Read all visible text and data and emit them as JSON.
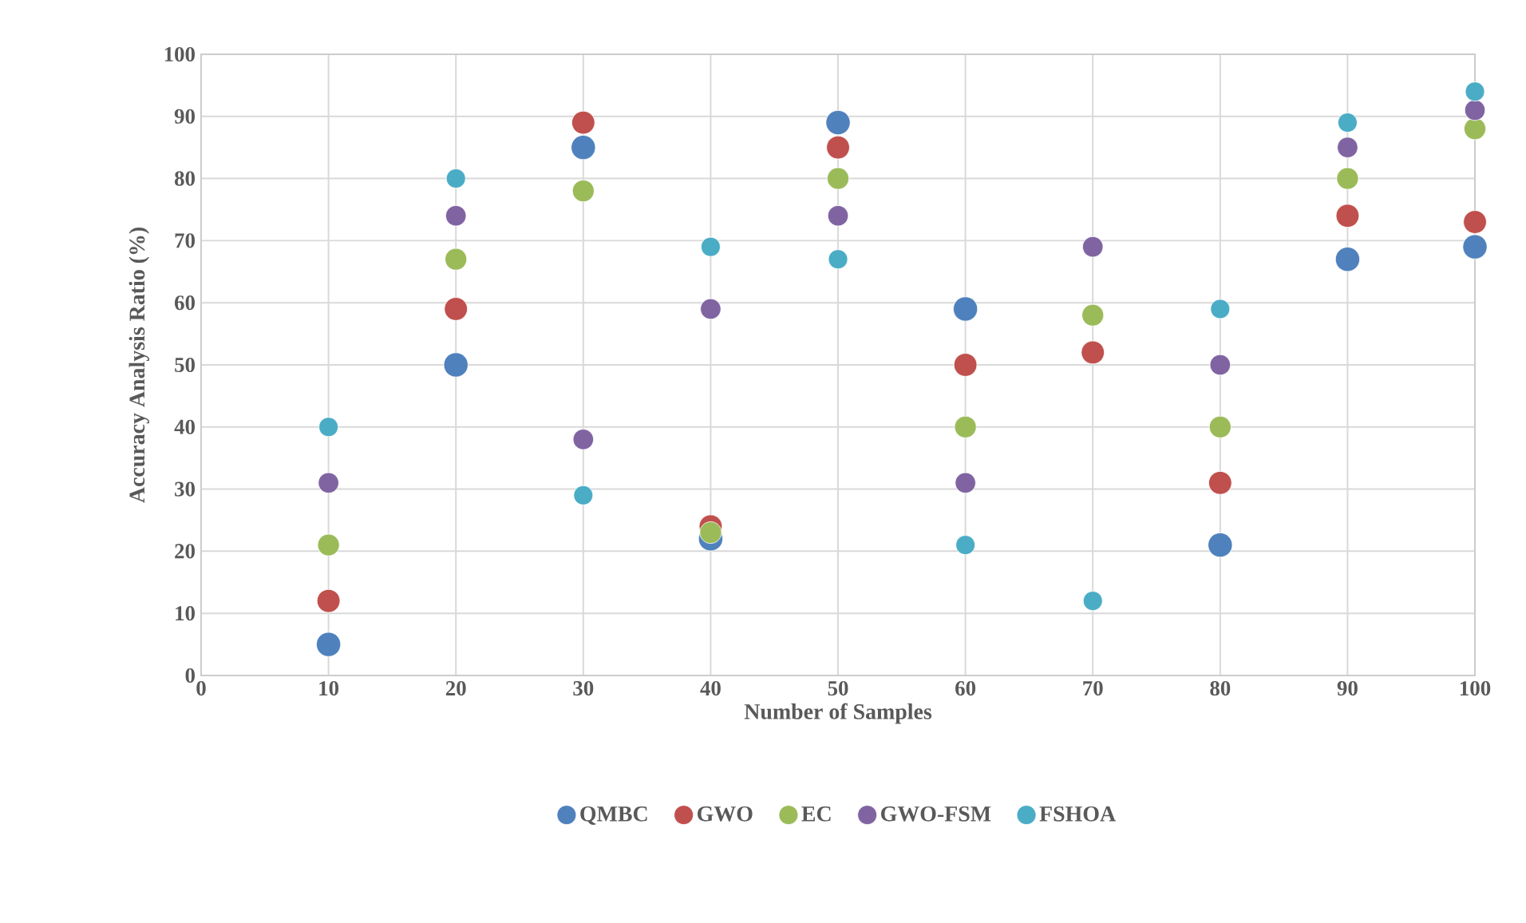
{
  "chart_data": {
    "type": "scatter",
    "xlabel": "Number of Samples",
    "ylabel": "Accuracy Analysis Ratio (%)",
    "x": [
      10,
      20,
      30,
      40,
      50,
      60,
      70,
      80,
      90,
      100
    ],
    "series": [
      {
        "name": "QMBC",
        "color": "#4f81bd",
        "values": [
          5,
          50,
          85,
          22,
          89,
          59,
          null,
          21,
          67,
          69
        ]
      },
      {
        "name": "GWO",
        "color": "#c0504d",
        "values": [
          12,
          59,
          89,
          24,
          85,
          50,
          52,
          31,
          74,
          73
        ]
      },
      {
        "name": "EC",
        "color": "#9bbb59",
        "values": [
          21,
          67,
          78,
          23,
          80,
          40,
          58,
          40,
          80,
          88
        ]
      },
      {
        "name": "GWO-FSM",
        "color": "#8064a2",
        "values": [
          31,
          74,
          38,
          59,
          74,
          31,
          69,
          50,
          85,
          91
        ]
      },
      {
        "name": "FSHOA",
        "color": "#4bacc6",
        "values": [
          40,
          80,
          29,
          69,
          67,
          21,
          12,
          59,
          89,
          94
        ]
      }
    ],
    "xlim": [
      0,
      100
    ],
    "ylim": [
      0,
      100
    ],
    "xticks": [
      0,
      10,
      20,
      30,
      40,
      50,
      60,
      70,
      80,
      90,
      100
    ],
    "yticks": [
      0,
      10,
      20,
      30,
      40,
      50,
      60,
      70,
      80,
      90,
      100
    ],
    "grid": true,
    "legend": "bottom",
    "marker": "circle"
  }
}
